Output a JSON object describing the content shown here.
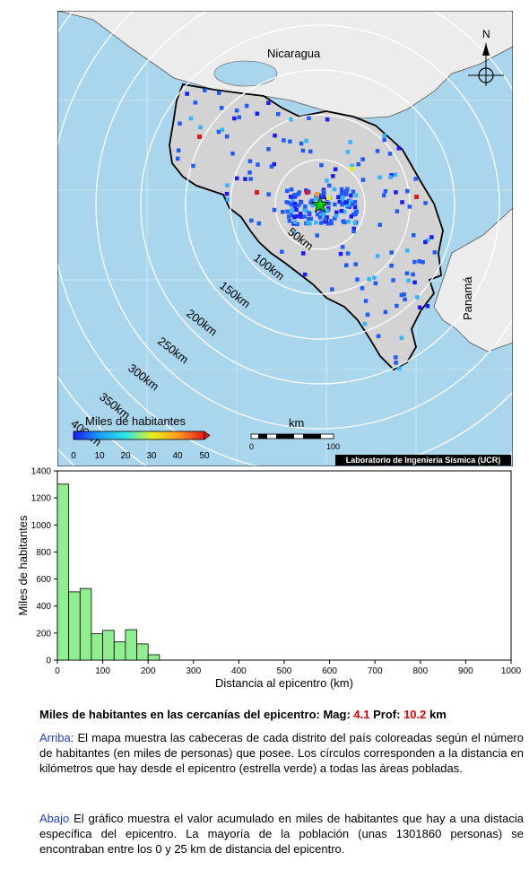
{
  "map": {
    "labels": {
      "nicaragua": "Nicaragua",
      "panama": "Panamá",
      "north": "N",
      "colorbar_title": "Miles de habitantes",
      "scale_unit": "km",
      "credit": "Laboratorio de Ingeniería Sísmica (UCR)"
    },
    "rings_km": [
      "50km",
      "100km",
      "150km",
      "200km",
      "250km",
      "300km",
      "350km",
      "400km"
    ],
    "colorbar_ticks": [
      "0",
      "10",
      "20",
      "30",
      "40",
      "50"
    ],
    "scale_ticks": [
      "0",
      "100"
    ],
    "colors": {
      "sea": "#a9d6ec",
      "land_cr": "#d3d3d3",
      "land_other": "#ececec",
      "epicenter": "#00cc00",
      "point_low": "#1e5cff",
      "point_mid": "#33b4ff"
    }
  },
  "chart_data": {
    "type": "bar",
    "title": "",
    "xlabel": "Distancia al epicentro (km)",
    "ylabel": "Miles de habitantes",
    "xlim": [
      0,
      1000
    ],
    "ylim": [
      0,
      1400
    ],
    "bin_width_km": 25,
    "bin_starts_km": [
      0,
      25,
      50,
      75,
      100,
      125,
      150,
      175,
      200
    ],
    "values": [
      1302,
      505,
      530,
      195,
      220,
      135,
      225,
      120,
      40
    ],
    "x_ticks": [
      "0",
      "100",
      "200",
      "300",
      "400",
      "500",
      "600",
      "700",
      "800",
      "900",
      "1000"
    ],
    "y_ticks": [
      "0",
      "200",
      "400",
      "600",
      "800",
      "1000",
      "1200",
      "1400"
    ],
    "bar_color": "#90ee90"
  },
  "text": {
    "headline_lead": "Miles de habitantes en las cercanías del epicentro: Mag:",
    "mag": "4.1",
    "prof_label": "Prof:",
    "prof": "10.2",
    "prof_unit": "km",
    "arriba_label": "Arriba:",
    "arriba_text": "El mapa muestra las cabeceras de cada distrito del país coloreadas según el número de habitantes (en miles de personas) que posee. Los círculos corresponden a la distancia en kilómetros que hay desde el epicentro (estrella verde) a todas las áreas pobladas.",
    "abajo_label": "Abajo",
    "abajo_text": "El gráfico muestra el valor acumulado en miles de habitantes que hay a una distacia específica del epicentro. La mayoría de la población (unas 1301860 personas) se encontraban entre los 0 y 25 km de distancia del epicentro."
  }
}
